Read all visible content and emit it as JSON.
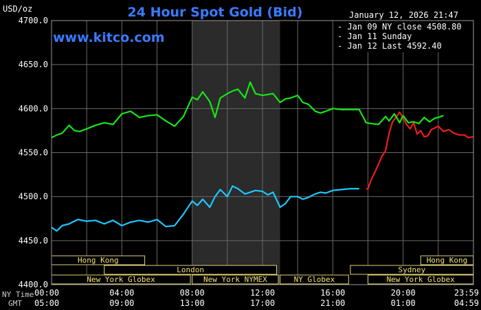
{
  "chart_data": {
    "type": "line",
    "title": "24 Hour Spot Gold (Bid)",
    "ylabel": "USD/oz",
    "date_label": "January 12, 2026 21:47",
    "watermark": "www.kitco.com",
    "ylim": [
      4400,
      4700
    ],
    "yticks": [
      "4700.0",
      "4650.0",
      "4600.0",
      "4550.0",
      "4500.0",
      "4450.0",
      "4400.0"
    ],
    "ny_time_label": "NY Time",
    "gmt_label": "GMT",
    "x_ticks_ny": [
      "00:00",
      "04:00",
      "08:00",
      "12:00",
      "16:00",
      "20:00",
      "23:59"
    ],
    "x_ticks_gmt": [
      "05:00",
      "09:00",
      "13:00",
      "17:00",
      "21:00",
      "01:00",
      "04:59"
    ],
    "legend_placement": "top-right",
    "series": [
      {
        "name": "Jan 09 NY close 4508.80",
        "color": "#1ec8ff",
        "x": [
          0,
          0.3,
          0.6,
          1.0,
          1.5,
          2.0,
          2.5,
          3.0,
          3.5,
          4.0,
          4.5,
          5.0,
          5.5,
          6.0,
          6.5,
          7.0,
          7.5,
          8.0,
          8.3,
          8.6,
          9.0,
          9.3,
          9.6,
          10.0,
          10.3,
          10.6,
          11.0,
          11.3,
          11.6,
          12.0,
          12.3,
          12.6,
          13.0,
          13.3,
          13.6,
          14.0,
          14.3,
          14.6,
          15.0,
          15.3,
          15.6,
          16.0,
          16.5,
          17.0,
          17.5
        ],
        "y": [
          4465,
          4461,
          4467,
          4469,
          4474,
          4472,
          4473,
          4469,
          4473,
          4467,
          4471,
          4473,
          4471,
          4474,
          4466,
          4467,
          4480,
          4495,
          4490,
          4497,
          4488,
          4500,
          4508,
          4500,
          4512,
          4509,
          4503,
          4505,
          4507,
          4506,
          4502,
          4505,
          4488,
          4492,
          4500,
          4500,
          4497,
          4499,
          4503,
          4505,
          4504,
          4507,
          4508,
          4509,
          4509
        ]
      },
      {
        "name": "Jan 11 Sunday",
        "color": "#ee1c1c",
        "x": [
          17.9,
          18.0,
          18.2,
          18.4,
          18.6,
          18.8,
          19.0,
          19.2,
          19.4,
          19.6,
          19.8,
          20.0,
          20.2,
          20.4,
          20.6,
          20.8,
          21.0,
          21.2,
          21.4,
          21.6,
          21.8,
          22.0,
          22.3,
          22.6,
          22.9,
          23.2,
          23.5,
          23.7,
          23.98
        ],
        "y": [
          4509,
          4509,
          4520,
          4528,
          4537,
          4546,
          4552,
          4572,
          4585,
          4590,
          4596,
          4589,
          4582,
          4577,
          4584,
          4571,
          4575,
          4568,
          4569,
          4576,
          4578,
          4580,
          4574,
          4576,
          4572,
          4570,
          4570,
          4567,
          4568
        ]
      },
      {
        "name": "Jan 12 Last 4592.40",
        "color": "#17e617",
        "x": [
          0,
          0.3,
          0.6,
          1.0,
          1.3,
          1.6,
          2.0,
          2.5,
          3.0,
          3.5,
          4.0,
          4.5,
          5.0,
          5.5,
          6.0,
          6.5,
          7.0,
          7.5,
          8.0,
          8.3,
          8.6,
          9.0,
          9.3,
          9.6,
          10.0,
          10.3,
          10.6,
          11.0,
          11.3,
          11.6,
          12.0,
          12.3,
          12.6,
          13.0,
          13.3,
          13.6,
          14.0,
          14.3,
          14.6,
          15.0,
          15.3,
          15.6,
          16.0,
          16.5,
          17.0,
          17.5,
          17.9,
          18.2,
          18.6,
          19.0,
          19.2,
          19.5,
          19.8,
          20.0,
          20.3,
          20.6,
          20.9,
          21.2,
          21.5,
          21.8,
          22.0,
          22.3
        ],
        "y": [
          4567,
          4570,
          4572,
          4581,
          4575,
          4574,
          4577,
          4581,
          4584,
          4582,
          4594,
          4597,
          4590,
          4592,
          4593,
          4586,
          4580,
          4591,
          4613,
          4610,
          4619,
          4608,
          4590,
          4612,
          4617,
          4620,
          4622,
          4612,
          4630,
          4617,
          4615,
          4616,
          4617,
          4607,
          4611,
          4612,
          4615,
          4607,
          4605,
          4597,
          4595,
          4597,
          4600,
          4599,
          4599,
          4599,
          4584,
          4583,
          4582,
          4591,
          4586,
          4594,
          4584,
          4592,
          4584,
          4585,
          4583,
          4590,
          4585,
          4589,
          4590,
          4592
        ]
      }
    ],
    "sessions": [
      {
        "label": "Hong Kong",
        "row": 0,
        "start": 0,
        "end": 5.3
      },
      {
        "label": "Hong Kong",
        "row": 0,
        "start": 21.0,
        "end": 23.99
      },
      {
        "label": "London",
        "row": 1,
        "start": 3.0,
        "end": 12.8
      },
      {
        "label": "Sydney",
        "row": 1,
        "start": 17.0,
        "end": 23.99
      },
      {
        "label": "New York Globex",
        "row": 2,
        "start": 0,
        "end": 7.9
      },
      {
        "label": "New York NYMEX",
        "row": 2,
        "start": 8.0,
        "end": 12.9
      },
      {
        "label": "NY Globex",
        "row": 2,
        "start": 13.0,
        "end": 16.9
      },
      {
        "label": "New York Globex",
        "row": 2,
        "start": 18.0,
        "end": 23.99
      }
    ],
    "shaded_region": [
      8.0,
      13.0
    ]
  }
}
